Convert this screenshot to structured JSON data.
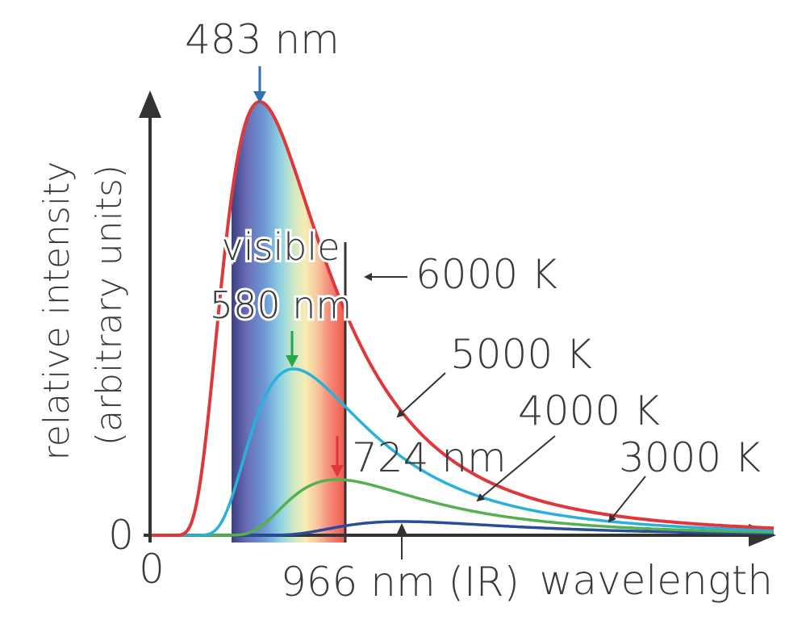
{
  "chart_data": {
    "type": "line",
    "xlabel": "wavelength",
    "ylabel": [
      "relative intensity",
      "(arbitrary units)"
    ],
    "x_origin_label": "0",
    "y_origin_label": "0",
    "band_label": "visible",
    "series": [
      {
        "name": "6000 K",
        "peak_label": "483 nm",
        "color": "#e0373b"
      },
      {
        "name": "5000 K",
        "peak_label": "580 nm",
        "color": "#29b1dc"
      },
      {
        "name": "4000 K",
        "peak_label": "724 nm",
        "color": "#55b04f"
      },
      {
        "name": "3000 K",
        "peak_label": "966 nm (IR)",
        "color": "#2b4c9b"
      }
    ]
  }
}
